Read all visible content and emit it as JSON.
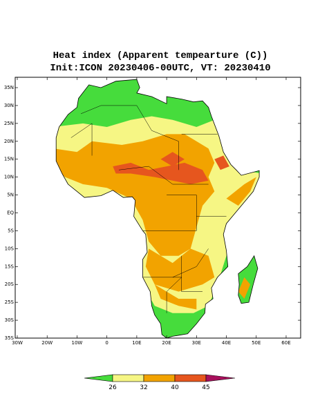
{
  "header": {
    "title": "Heat index (Apparent tempearture (C))",
    "subtitle": "Init:ICON 20230406-00UTC, VT: 20230410"
  },
  "map": {
    "lat_labels": [
      "35N",
      "30N",
      "25N",
      "20N",
      "15N",
      "10N",
      "5N",
      "EQ",
      "5S",
      "10S",
      "15S",
      "20S",
      "25S",
      "30S",
      "35S"
    ],
    "lon_labels": [
      "30W",
      "20W",
      "10W",
      "0",
      "10E",
      "20E",
      "30E",
      "40E",
      "50E",
      "60E"
    ]
  },
  "colorbar": {
    "labels": [
      "26",
      "32",
      "40",
      "45"
    ],
    "colors": [
      "#46dc3c",
      "#f6f684",
      "#f2a300",
      "#e6561e",
      "#a8105c"
    ]
  }
}
